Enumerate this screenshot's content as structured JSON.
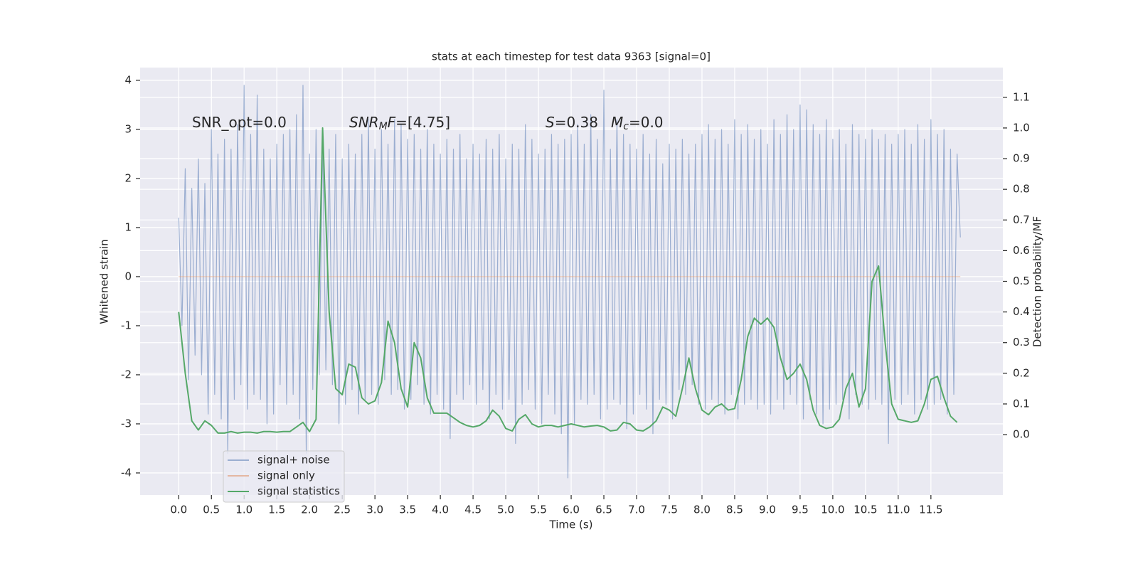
{
  "chart_data": {
    "type": "line",
    "title": "stats at each timestep for test data 9363 [signal=0]",
    "xlabel": "Time (s)",
    "ylabel": "Whitened strain",
    "y2label": "Detection probability/MF",
    "grid": true,
    "legend": "lower left",
    "xlim": [
      -0.59,
      12.6
    ],
    "ylim": [
      -4.45,
      4.26
    ],
    "y2lim": [
      -0.197,
      1.197
    ],
    "xticks": [
      {
        "value": 0,
        "label": "0.0"
      },
      0.5,
      {
        "value": 1,
        "label": "1.0"
      },
      1.5,
      {
        "value": 2,
        "label": "2.0"
      },
      2.5,
      {
        "value": 3,
        "label": "3.0"
      },
      3.5,
      {
        "value": 4,
        "label": "4.0"
      },
      4.5,
      {
        "value": 5,
        "label": "5.0"
      },
      5.5,
      {
        "value": 6,
        "label": "6.0"
      },
      6.5,
      {
        "value": 7,
        "label": "7.0"
      },
      7.5,
      {
        "value": 8,
        "label": "8.0"
      },
      8.5,
      {
        "value": 9,
        "label": "9.0"
      },
      9.5,
      {
        "value": 10,
        "label": "10.0"
      },
      10.5,
      {
        "value": 11,
        "label": "11.0"
      },
      11.5
    ],
    "yticks": [
      -4,
      -3,
      -2,
      -1,
      0,
      1,
      2,
      3,
      4
    ],
    "y2ticks": [
      {
        "value": 0,
        "label": "0.0"
      },
      0.1,
      0.2,
      0.3,
      0.4,
      0.5,
      0.6,
      0.7,
      0.8,
      0.9,
      {
        "value": 1,
        "label": "1.0"
      },
      1.1
    ],
    "annotations": [
      {
        "parts": [
          {
            "text": "SNR_opt=0.0",
            "style": "normal"
          }
        ]
      },
      {
        "parts": [
          {
            "text": "SNR",
            "style": "italic"
          },
          {
            "text": "M",
            "style": "subscript"
          },
          {
            "text": "F",
            "style": "italic"
          },
          {
            "text": "=[4.75]",
            "style": "normal"
          }
        ]
      },
      {
        "parts": [
          {
            "text": "S",
            "style": "italic"
          },
          {
            "text": "=0.38",
            "style": "normal"
          }
        ]
      },
      {
        "parts": [
          {
            "text": "M",
            "style": "italic"
          },
          {
            "text": "c",
            "style": "subscript"
          },
          {
            "text": "=0.0",
            "style": "normal"
          }
        ]
      }
    ],
    "series": [
      {
        "name": "signal+ noise",
        "color": "#4c72b0",
        "alpha": 0.5,
        "axis": "y",
        "x": [
          0,
          0.05,
          0.1,
          0.15,
          0.2,
          0.25,
          0.3,
          0.35,
          0.4,
          0.45,
          0.5,
          0.55,
          0.6,
          0.65,
          0.7,
          0.75,
          0.8,
          0.85,
          0.9,
          0.95,
          1,
          1.05,
          1.1,
          1.15,
          1.2,
          1.25,
          1.3,
          1.35,
          1.4,
          1.45,
          1.5,
          1.55,
          1.6,
          1.65,
          1.7,
          1.75,
          1.8,
          1.85,
          1.9,
          1.95,
          2,
          2.05,
          2.1,
          2.15,
          2.2,
          2.25,
          2.3,
          2.35,
          2.4,
          2.45,
          2.5,
          2.55,
          2.6,
          2.65,
          2.7,
          2.75,
          2.8,
          2.85,
          2.9,
          2.95,
          3,
          3.05,
          3.1,
          3.15,
          3.2,
          3.25,
          3.3,
          3.35,
          3.4,
          3.45,
          3.5,
          3.55,
          3.6,
          3.65,
          3.7,
          3.75,
          3.8,
          3.85,
          3.9,
          3.95,
          4,
          4.05,
          4.1,
          4.15,
          4.2,
          4.25,
          4.3,
          4.35,
          4.4,
          4.45,
          4.5,
          4.55,
          4.6,
          4.65,
          4.7,
          4.75,
          4.8,
          4.85,
          4.9,
          4.95,
          5,
          5.05,
          5.1,
          5.15,
          5.2,
          5.25,
          5.3,
          5.35,
          5.4,
          5.45,
          5.5,
          5.55,
          5.6,
          5.65,
          5.7,
          5.75,
          5.8,
          5.85,
          5.9,
          5.95,
          6,
          6.05,
          6.1,
          6.15,
          6.2,
          6.25,
          6.3,
          6.35,
          6.4,
          6.45,
          6.5,
          6.55,
          6.6,
          6.65,
          6.7,
          6.75,
          6.8,
          6.85,
          6.9,
          6.95,
          7,
          7.05,
          7.1,
          7.15,
          7.2,
          7.25,
          7.3,
          7.35,
          7.4,
          7.45,
          7.5,
          7.55,
          7.6,
          7.65,
          7.7,
          7.75,
          7.8,
          7.85,
          7.9,
          7.95,
          8,
          8.05,
          8.1,
          8.15,
          8.2,
          8.25,
          8.3,
          8.35,
          8.4,
          8.45,
          8.5,
          8.55,
          8.6,
          8.65,
          8.7,
          8.75,
          8.8,
          8.85,
          8.9,
          8.95,
          9,
          9.05,
          9.1,
          9.15,
          9.2,
          9.25,
          9.3,
          9.35,
          9.4,
          9.45,
          9.5,
          9.55,
          9.6,
          9.65,
          9.7,
          9.75,
          9.8,
          9.85,
          9.9,
          9.95,
          10,
          10.05,
          10.1,
          10.15,
          10.2,
          10.25,
          10.3,
          10.35,
          10.4,
          10.45,
          10.5,
          10.55,
          10.6,
          10.65,
          10.7,
          10.75,
          10.8,
          10.85,
          10.9,
          10.95,
          11,
          11.05,
          11.1,
          11.15,
          11.2,
          11.25,
          11.3,
          11.35,
          11.4,
          11.45,
          11.5,
          11.55,
          11.6,
          11.65,
          11.7,
          11.75,
          11.8,
          11.85,
          11.9,
          11.95
        ],
        "values": [
          1.2,
          -1.0,
          2.2,
          -2.1,
          1.8,
          -1.6,
          2.4,
          -2.0,
          1.9,
          -2.8,
          3.0,
          -2.4,
          2.5,
          -2.9,
          2.8,
          -3.6,
          2.6,
          -2.5,
          3.1,
          -2.2,
          3.9,
          -2.7,
          2.9,
          -2.4,
          3.7,
          -2.5,
          2.6,
          -3.0,
          2.4,
          -2.8,
          2.7,
          -2.2,
          2.9,
          -2.6,
          3.0,
          -2.4,
          3.3,
          -2.9,
          3.9,
          -3.6,
          2.5,
          -2.3,
          3.0,
          -2.0,
          2.8,
          -1.9,
          2.6,
          -2.2,
          2.9,
          -3.0,
          2.4,
          -2.6,
          2.7,
          -2.3,
          2.5,
          -2.8,
          2.9,
          -2.5,
          3.2,
          -2.4,
          2.6,
          -2.6,
          3.0,
          -2.1,
          2.7,
          -2.4,
          3.2,
          -2.3,
          3.1,
          -2.7,
          2.8,
          -2.5,
          2.9,
          -2.2,
          2.6,
          -2.6,
          3.0,
          -2.8,
          2.7,
          -2.4,
          2.5,
          -2.7,
          2.8,
          -3.3,
          2.6,
          -2.4,
          2.9,
          -2.5,
          2.4,
          -2.2,
          2.7,
          -2.6,
          2.5,
          -2.3,
          2.8,
          -2.9,
          2.6,
          -2.4,
          2.9,
          -2.7,
          2.4,
          -2.5,
          2.7,
          -3.4,
          2.6,
          -2.6,
          3.1,
          -2.3,
          2.8,
          -2.7,
          2.5,
          -3.0,
          2.6,
          -2.4,
          2.9,
          -2.8,
          2.7,
          -3.2,
          2.8,
          -4.1,
          2.9,
          -3.0,
          3.1,
          -2.5,
          2.7,
          -2.6,
          3.3,
          -2.4,
          2.8,
          -2.9,
          3.8,
          -2.7,
          2.6,
          -2.5,
          3.2,
          -2.6,
          2.9,
          -3.1,
          2.7,
          -2.8,
          2.6,
          -2.4,
          2.9,
          -2.7,
          2.5,
          -3.2,
          2.8,
          -2.5,
          2.3,
          -2.6,
          2.7,
          -2.9,
          2.6,
          -2.3,
          2.8,
          -2.4,
          2.5,
          -2.2,
          2.7,
          -2.6,
          2.9,
          -2.7,
          3.1,
          -2.5,
          2.8,
          -2.6,
          3.0,
          -2.8,
          2.7,
          -2.4,
          3.2,
          -2.9,
          2.9,
          -2.6,
          3.1,
          -2.5,
          2.8,
          -2.7,
          3.0,
          -2.6,
          2.7,
          -2.8,
          3.2,
          -2.5,
          2.9,
          -2.7,
          3.3,
          -2.4,
          3.0,
          -2.6,
          3.5,
          -2.9,
          3.4,
          -2.5,
          3.1,
          -2.8,
          2.9,
          -3.0,
          3.2,
          -2.7,
          2.8,
          -2.6,
          3.0,
          -2.5,
          2.7,
          -2.9,
          3.1,
          -2.4,
          2.9,
          -2.6,
          2.8,
          -2.7,
          3.0,
          -2.5,
          2.8,
          -2.6,
          2.9,
          -3.4,
          2.7,
          -2.5,
          2.9,
          -2.6,
          3.0,
          -2.4,
          2.7,
          -2.8,
          3.1,
          -2.5,
          2.8,
          -2.7,
          3.2,
          -2.6,
          2.9,
          -2.5,
          3.0,
          -2.8,
          2.6,
          -2.4,
          2.5,
          0.8
        ]
      },
      {
        "name": "signal only",
        "color": "#dd8452",
        "alpha": 0.5,
        "axis": "y",
        "x": [
          0,
          11.95
        ],
        "values": [
          0,
          0
        ]
      },
      {
        "name": "signal statistics",
        "color": "#55a868",
        "alpha": 1,
        "axis": "y2",
        "x": [
          0,
          0.1,
          0.2,
          0.3,
          0.4,
          0.5,
          0.6,
          0.7,
          0.8,
          0.9,
          1,
          1.1,
          1.2,
          1.3,
          1.4,
          1.5,
          1.6,
          1.7,
          1.8,
          1.9,
          2,
          2.1,
          2.2,
          2.3,
          2.4,
          2.5,
          2.6,
          2.7,
          2.8,
          2.9,
          3,
          3.1,
          3.2,
          3.3,
          3.4,
          3.5,
          3.6,
          3.7,
          3.8,
          3.9,
          4,
          4.1,
          4.2,
          4.3,
          4.4,
          4.5,
          4.6,
          4.7,
          4.8,
          4.9,
          5,
          5.1,
          5.2,
          5.3,
          5.4,
          5.5,
          5.6,
          5.7,
          5.8,
          5.9,
          6,
          6.1,
          6.2,
          6.3,
          6.4,
          6.5,
          6.6,
          6.7,
          6.8,
          6.9,
          7,
          7.1,
          7.2,
          7.3,
          7.4,
          7.5,
          7.6,
          7.7,
          7.8,
          7.9,
          8,
          8.1,
          8.2,
          8.3,
          8.4,
          8.5,
          8.6,
          8.7,
          8.8,
          8.9,
          9,
          9.1,
          9.2,
          9.3,
          9.4,
          9.5,
          9.6,
          9.7,
          9.8,
          9.9,
          10,
          10.1,
          10.2,
          10.3,
          10.4,
          10.5,
          10.6,
          10.7,
          10.8,
          10.9,
          11,
          11.1,
          11.2,
          11.3,
          11.4,
          11.5,
          11.6,
          11.7,
          11.8,
          11.9
        ],
        "values": [
          0.4,
          0.2,
          0.045,
          0.015,
          0.045,
          0.03,
          0.005,
          0.005,
          0.01,
          0.005,
          0.008,
          0.008,
          0.005,
          0.01,
          0.01,
          0.008,
          0.01,
          0.01,
          0.025,
          0.04,
          0.01,
          0.05,
          1.0,
          0.4,
          0.15,
          0.13,
          0.23,
          0.22,
          0.12,
          0.1,
          0.11,
          0.17,
          0.37,
          0.3,
          0.15,
          0.09,
          0.3,
          0.25,
          0.12,
          0.07,
          0.07,
          0.07,
          0.055,
          0.04,
          0.03,
          0.025,
          0.03,
          0.045,
          0.08,
          0.06,
          0.02,
          0.012,
          0.05,
          0.065,
          0.035,
          0.025,
          0.03,
          0.03,
          0.025,
          0.03,
          0.035,
          0.03,
          0.025,
          0.028,
          0.03,
          0.025,
          0.012,
          0.015,
          0.04,
          0.035,
          0.015,
          0.012,
          0.025,
          0.045,
          0.09,
          0.08,
          0.06,
          0.15,
          0.25,
          0.15,
          0.08,
          0.065,
          0.09,
          0.1,
          0.08,
          0.085,
          0.18,
          0.32,
          0.38,
          0.36,
          0.38,
          0.35,
          0.25,
          0.18,
          0.2,
          0.23,
          0.18,
          0.08,
          0.03,
          0.02,
          0.025,
          0.05,
          0.15,
          0.2,
          0.09,
          0.15,
          0.5,
          0.55,
          0.3,
          0.1,
          0.05,
          0.045,
          0.04,
          0.045,
          0.1,
          0.18,
          0.19,
          0.12,
          0.06,
          0.04
        ]
      }
    ]
  }
}
